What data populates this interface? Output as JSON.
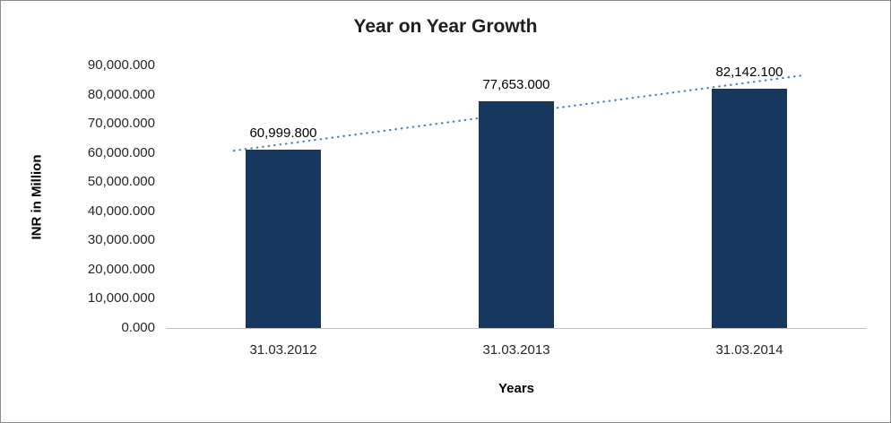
{
  "chart_data": {
    "type": "bar",
    "title": "Year on Year Growth",
    "xlabel": "Years",
    "ylabel": "INR in Million",
    "categories": [
      "31.03.2012",
      "31.03.2013",
      "31.03.2014"
    ],
    "values": [
      60999.8,
      77653.0,
      82142.1
    ],
    "value_labels": [
      "60,999.800",
      "77,653.000",
      "82,142.100"
    ],
    "ylim": [
      0,
      90000
    ],
    "ytick_step": 10000,
    "ytick_labels_top_to_bottom": [
      "90,000.000",
      "80,000.000",
      "70,000.000",
      "60,000.000",
      "50,000.000",
      "40,000.000",
      "30,000.000",
      "20,000.000",
      "10,000.000",
      "0.000"
    ],
    "grid": "off",
    "legend": "none",
    "bar_color": "#17375E",
    "trendline": "linear-dotted",
    "trendline_color": "#4F81BD",
    "axis_line_color": "#BFBFBF"
  }
}
